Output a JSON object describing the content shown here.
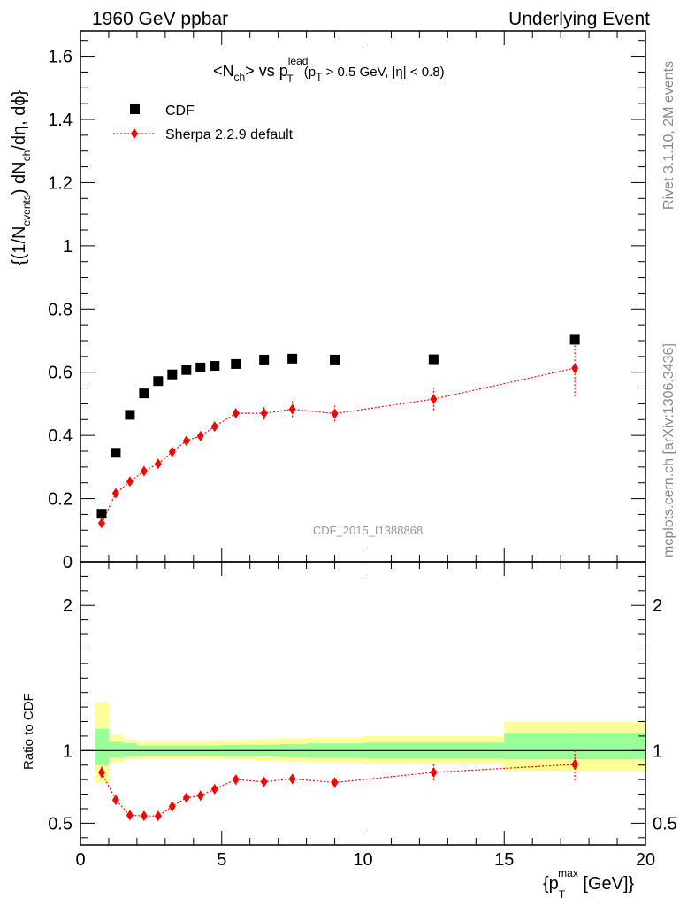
{
  "header": {
    "left": "1960 GeV ppbar",
    "right": "Underlying Event"
  },
  "side_labels": {
    "rivet": "Rivet 3.1.10,  2M events",
    "mcplots": "mcplots.cern.ch [arXiv:1306.3436]"
  },
  "watermark": "CDF_2015_I1388868",
  "title": {
    "t1": "<N",
    "t1_sub": "ch",
    "t2": "> vs p",
    "t2_sup": "lead",
    "t2_sub": "T",
    "t3": "(p",
    "t3_sub": "T",
    "t4": " > 0.5 GeV, |η| < 0.8)"
  },
  "y_axis_label": {
    "p1": "{(1/N",
    "p1_sub": "events",
    "p2": ") dN",
    "p2_sub": "ch",
    "p3": "/dη, dϕ}"
  },
  "ratio_label": "Ratio to CDF",
  "x_axis_label": {
    "p1": "{p",
    "p1_sub": "T",
    "p1_sup": "max",
    "p2": " [GeV]}"
  },
  "legend": {
    "cdf": "CDF",
    "sherpa": "Sherpa 2.2.9 default"
  },
  "colors": {
    "data": "#000000",
    "mc": "#ff0000",
    "band_inner": "#99ff99",
    "band_outer": "#ffff99"
  },
  "chart_data": {
    "type": "scatter",
    "x_range": [
      0,
      20
    ],
    "main_y_range": [
      0,
      1.68
    ],
    "ratio_y_range": [
      0.35,
      2.3
    ],
    "x_ticks": [
      0,
      5,
      10,
      15,
      20
    ],
    "main_y_ticks": [
      0,
      0.2,
      0.4,
      0.6,
      0.8,
      1,
      1.2,
      1.4,
      1.6
    ],
    "ratio_y_ticks": [
      0.5,
      1,
      2
    ],
    "series": [
      {
        "name": "CDF",
        "marker": "square",
        "x": [
          0.75,
          1.25,
          1.75,
          2.25,
          2.75,
          3.25,
          3.75,
          4.25,
          4.75,
          5.5,
          6.5,
          7.5,
          9.0,
          12.5,
          17.5
        ],
        "y": [
          0.152,
          0.345,
          0.465,
          0.533,
          0.572,
          0.593,
          0.607,
          0.615,
          0.62,
          0.626,
          0.64,
          0.643,
          0.64,
          0.641,
          0.703
        ]
      },
      {
        "name": "Sherpa 2.2.9 default",
        "marker": "diamond",
        "x": [
          0.75,
          1.25,
          1.75,
          2.25,
          2.75,
          3.25,
          3.75,
          4.25,
          4.75,
          5.5,
          6.5,
          7.5,
          9.0,
          12.5,
          17.5
        ],
        "y": [
          0.122,
          0.217,
          0.254,
          0.287,
          0.31,
          0.348,
          0.383,
          0.398,
          0.428,
          0.47,
          0.47,
          0.483,
          0.469,
          0.515,
          0.613
        ],
        "yerr": [
          0.01,
          0.01,
          0.01,
          0.01,
          0.01,
          0.012,
          0.012,
          0.012,
          0.012,
          0.015,
          0.02,
          0.025,
          0.025,
          0.035,
          0.09
        ]
      }
    ],
    "ratio": {
      "ylabel": "Ratio to CDF",
      "x": [
        0.75,
        1.25,
        1.75,
        2.25,
        2.75,
        3.25,
        3.75,
        4.25,
        4.75,
        5.5,
        6.5,
        7.5,
        9.0,
        12.5,
        17.5
      ],
      "y": [
        0.85,
        0.66,
        0.555,
        0.55,
        0.55,
        0.615,
        0.675,
        0.69,
        0.735,
        0.8,
        0.785,
        0.805,
        0.78,
        0.85,
        0.905
      ],
      "yerr": [
        0.04,
        0.02,
        0.015,
        0.015,
        0.015,
        0.02,
        0.02,
        0.02,
        0.02,
        0.025,
        0.03,
        0.035,
        0.035,
        0.055,
        0.11
      ],
      "bands": [
        {
          "x0": 0.5,
          "x1": 1.0,
          "in_lo": 0.9,
          "in_hi": 1.15,
          "out_lo": 0.78,
          "out_hi": 1.33
        },
        {
          "x0": 1.0,
          "x1": 1.5,
          "in_lo": 0.95,
          "in_hi": 1.06,
          "out_lo": 0.92,
          "out_hi": 1.11
        },
        {
          "x0": 1.5,
          "x1": 2.0,
          "in_lo": 0.96,
          "in_hi": 1.05,
          "out_lo": 0.94,
          "out_hi": 1.08
        },
        {
          "x0": 2.0,
          "x1": 2.5,
          "in_lo": 0.965,
          "in_hi": 1.035,
          "out_lo": 0.945,
          "out_hi": 1.065
        },
        {
          "x0": 2.5,
          "x1": 3.0,
          "in_lo": 0.965,
          "in_hi": 1.035,
          "out_lo": 0.945,
          "out_hi": 1.065
        },
        {
          "x0": 3.0,
          "x1": 3.5,
          "in_lo": 0.965,
          "in_hi": 1.035,
          "out_lo": 0.945,
          "out_hi": 1.065
        },
        {
          "x0": 3.5,
          "x1": 4.0,
          "in_lo": 0.965,
          "in_hi": 1.035,
          "out_lo": 0.945,
          "out_hi": 1.065
        },
        {
          "x0": 4.0,
          "x1": 4.5,
          "in_lo": 0.965,
          "in_hi": 1.035,
          "out_lo": 0.945,
          "out_hi": 1.065
        },
        {
          "x0": 4.5,
          "x1": 5.0,
          "in_lo": 0.965,
          "in_hi": 1.035,
          "out_lo": 0.94,
          "out_hi": 1.07
        },
        {
          "x0": 5.0,
          "x1": 6.0,
          "in_lo": 0.96,
          "in_hi": 1.04,
          "out_lo": 0.94,
          "out_hi": 1.07
        },
        {
          "x0": 6.0,
          "x1": 7.0,
          "in_lo": 0.96,
          "in_hi": 1.04,
          "out_lo": 0.935,
          "out_hi": 1.075
        },
        {
          "x0": 7.0,
          "x1": 8.0,
          "in_lo": 0.955,
          "in_hi": 1.045,
          "out_lo": 0.925,
          "out_hi": 1.085
        },
        {
          "x0": 8.0,
          "x1": 10.0,
          "in_lo": 0.95,
          "in_hi": 1.05,
          "out_lo": 0.92,
          "out_hi": 1.09
        },
        {
          "x0": 10.0,
          "x1": 15.0,
          "in_lo": 0.945,
          "in_hi": 1.055,
          "out_lo": 0.91,
          "out_hi": 1.1
        },
        {
          "x0": 15.0,
          "x1": 20.0,
          "in_lo": 0.94,
          "in_hi": 1.12,
          "out_lo": 0.86,
          "out_hi": 1.2
        }
      ]
    }
  }
}
